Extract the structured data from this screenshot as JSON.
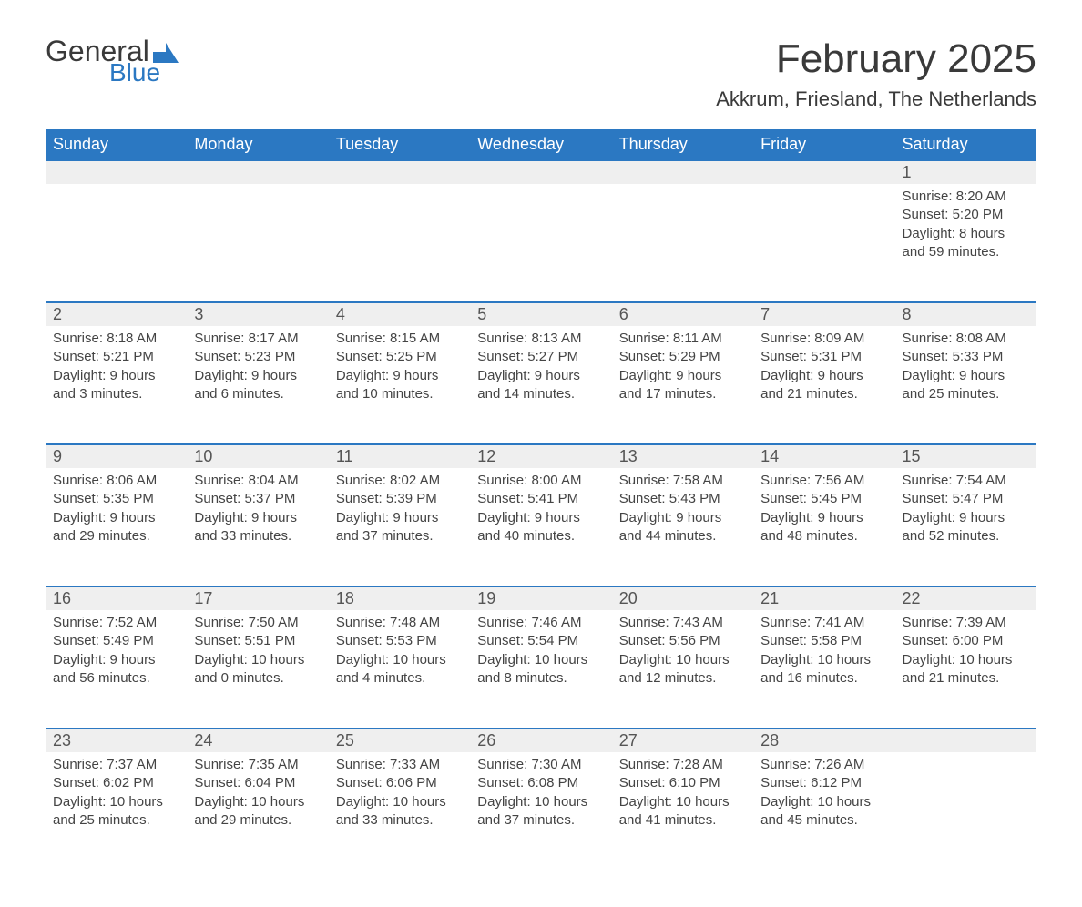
{
  "brand": {
    "general": "General",
    "blue": "Blue",
    "general_color": "#3a3a3a",
    "blue_color": "#2b78c2"
  },
  "header": {
    "month_title": "February 2025",
    "location": "Akkrum, Friesland, The Netherlands"
  },
  "style": {
    "header_row_bg": "#2b78c2",
    "header_row_text": "#ffffff",
    "daynum_bg": "#efefef",
    "daynum_border_top": "#2b78c2",
    "body_text": "#444444",
    "title_fontsize": 44,
    "location_fontsize": 22,
    "dayheader_fontsize": 18,
    "daynum_fontsize": 18,
    "daycontent_fontsize": 15
  },
  "day_headers": [
    "Sunday",
    "Monday",
    "Tuesday",
    "Wednesday",
    "Thursday",
    "Friday",
    "Saturday"
  ],
  "weeks": [
    [
      null,
      null,
      null,
      null,
      null,
      null,
      {
        "num": "1",
        "sunrise": "Sunrise: 8:20 AM",
        "sunset": "Sunset: 5:20 PM",
        "daylight": "Daylight: 8 hours and 59 minutes."
      }
    ],
    [
      {
        "num": "2",
        "sunrise": "Sunrise: 8:18 AM",
        "sunset": "Sunset: 5:21 PM",
        "daylight": "Daylight: 9 hours and 3 minutes."
      },
      {
        "num": "3",
        "sunrise": "Sunrise: 8:17 AM",
        "sunset": "Sunset: 5:23 PM",
        "daylight": "Daylight: 9 hours and 6 minutes."
      },
      {
        "num": "4",
        "sunrise": "Sunrise: 8:15 AM",
        "sunset": "Sunset: 5:25 PM",
        "daylight": "Daylight: 9 hours and 10 minutes."
      },
      {
        "num": "5",
        "sunrise": "Sunrise: 8:13 AM",
        "sunset": "Sunset: 5:27 PM",
        "daylight": "Daylight: 9 hours and 14 minutes."
      },
      {
        "num": "6",
        "sunrise": "Sunrise: 8:11 AM",
        "sunset": "Sunset: 5:29 PM",
        "daylight": "Daylight: 9 hours and 17 minutes."
      },
      {
        "num": "7",
        "sunrise": "Sunrise: 8:09 AM",
        "sunset": "Sunset: 5:31 PM",
        "daylight": "Daylight: 9 hours and 21 minutes."
      },
      {
        "num": "8",
        "sunrise": "Sunrise: 8:08 AM",
        "sunset": "Sunset: 5:33 PM",
        "daylight": "Daylight: 9 hours and 25 minutes."
      }
    ],
    [
      {
        "num": "9",
        "sunrise": "Sunrise: 8:06 AM",
        "sunset": "Sunset: 5:35 PM",
        "daylight": "Daylight: 9 hours and 29 minutes."
      },
      {
        "num": "10",
        "sunrise": "Sunrise: 8:04 AM",
        "sunset": "Sunset: 5:37 PM",
        "daylight": "Daylight: 9 hours and 33 minutes."
      },
      {
        "num": "11",
        "sunrise": "Sunrise: 8:02 AM",
        "sunset": "Sunset: 5:39 PM",
        "daylight": "Daylight: 9 hours and 37 minutes."
      },
      {
        "num": "12",
        "sunrise": "Sunrise: 8:00 AM",
        "sunset": "Sunset: 5:41 PM",
        "daylight": "Daylight: 9 hours and 40 minutes."
      },
      {
        "num": "13",
        "sunrise": "Sunrise: 7:58 AM",
        "sunset": "Sunset: 5:43 PM",
        "daylight": "Daylight: 9 hours and 44 minutes."
      },
      {
        "num": "14",
        "sunrise": "Sunrise: 7:56 AM",
        "sunset": "Sunset: 5:45 PM",
        "daylight": "Daylight: 9 hours and 48 minutes."
      },
      {
        "num": "15",
        "sunrise": "Sunrise: 7:54 AM",
        "sunset": "Sunset: 5:47 PM",
        "daylight": "Daylight: 9 hours and 52 minutes."
      }
    ],
    [
      {
        "num": "16",
        "sunrise": "Sunrise: 7:52 AM",
        "sunset": "Sunset: 5:49 PM",
        "daylight": "Daylight: 9 hours and 56 minutes."
      },
      {
        "num": "17",
        "sunrise": "Sunrise: 7:50 AM",
        "sunset": "Sunset: 5:51 PM",
        "daylight": "Daylight: 10 hours and 0 minutes."
      },
      {
        "num": "18",
        "sunrise": "Sunrise: 7:48 AM",
        "sunset": "Sunset: 5:53 PM",
        "daylight": "Daylight: 10 hours and 4 minutes."
      },
      {
        "num": "19",
        "sunrise": "Sunrise: 7:46 AM",
        "sunset": "Sunset: 5:54 PM",
        "daylight": "Daylight: 10 hours and 8 minutes."
      },
      {
        "num": "20",
        "sunrise": "Sunrise: 7:43 AM",
        "sunset": "Sunset: 5:56 PM",
        "daylight": "Daylight: 10 hours and 12 minutes."
      },
      {
        "num": "21",
        "sunrise": "Sunrise: 7:41 AM",
        "sunset": "Sunset: 5:58 PM",
        "daylight": "Daylight: 10 hours and 16 minutes."
      },
      {
        "num": "22",
        "sunrise": "Sunrise: 7:39 AM",
        "sunset": "Sunset: 6:00 PM",
        "daylight": "Daylight: 10 hours and 21 minutes."
      }
    ],
    [
      {
        "num": "23",
        "sunrise": "Sunrise: 7:37 AM",
        "sunset": "Sunset: 6:02 PM",
        "daylight": "Daylight: 10 hours and 25 minutes."
      },
      {
        "num": "24",
        "sunrise": "Sunrise: 7:35 AM",
        "sunset": "Sunset: 6:04 PM",
        "daylight": "Daylight: 10 hours and 29 minutes."
      },
      {
        "num": "25",
        "sunrise": "Sunrise: 7:33 AM",
        "sunset": "Sunset: 6:06 PM",
        "daylight": "Daylight: 10 hours and 33 minutes."
      },
      {
        "num": "26",
        "sunrise": "Sunrise: 7:30 AM",
        "sunset": "Sunset: 6:08 PM",
        "daylight": "Daylight: 10 hours and 37 minutes."
      },
      {
        "num": "27",
        "sunrise": "Sunrise: 7:28 AM",
        "sunset": "Sunset: 6:10 PM",
        "daylight": "Daylight: 10 hours and 41 minutes."
      },
      {
        "num": "28",
        "sunrise": "Sunrise: 7:26 AM",
        "sunset": "Sunset: 6:12 PM",
        "daylight": "Daylight: 10 hours and 45 minutes."
      },
      null
    ]
  ]
}
